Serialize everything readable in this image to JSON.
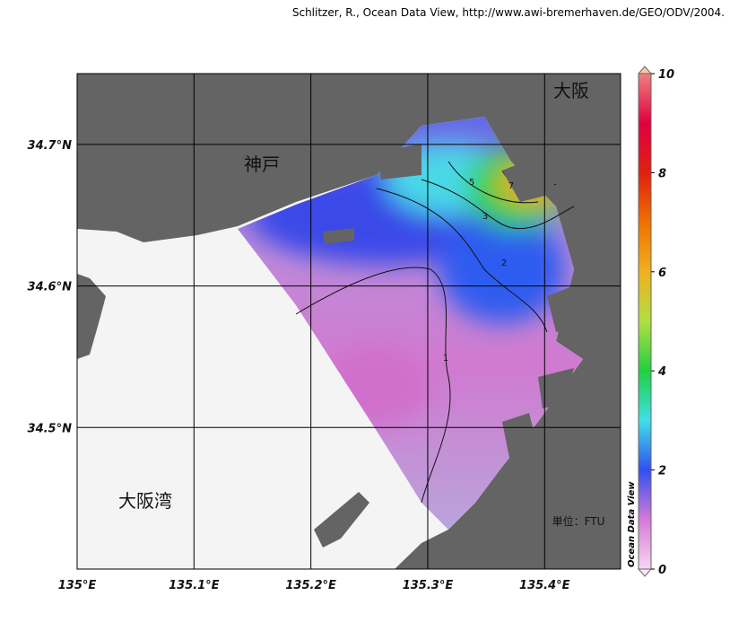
{
  "map": {
    "credit": "Schlitzer, R., Ocean Data View, http://www.awi-bremerhaven.de/GEO/ODV/2004.",
    "xlim": [
      135.0,
      135.465
    ],
    "ylim": [
      34.4,
      34.75
    ],
    "xticks": [
      {
        "value": 135.0,
        "label": "135°E"
      },
      {
        "value": 135.1,
        "label": "135.1°E"
      },
      {
        "value": 135.2,
        "label": "135.2°E"
      },
      {
        "value": 135.3,
        "label": "135.3°E"
      },
      {
        "value": 135.4,
        "label": "135.4°E"
      }
    ],
    "yticks": [
      {
        "value": 34.5,
        "label": "34.5°N"
      },
      {
        "value": 34.6,
        "label": "34.6°N"
      },
      {
        "value": 34.7,
        "label": "34.7°N"
      }
    ],
    "place_labels": [
      "神戸",
      "大阪",
      "大阪湾"
    ],
    "unit": "単位：FTU",
    "contour_levels": [
      1,
      2,
      3,
      5,
      7
    ],
    "colorbar": {
      "title": "Ocean Data View",
      "lim": [
        0,
        10
      ],
      "ticks": [
        0,
        2,
        4,
        6,
        8,
        10
      ]
    }
  }
}
